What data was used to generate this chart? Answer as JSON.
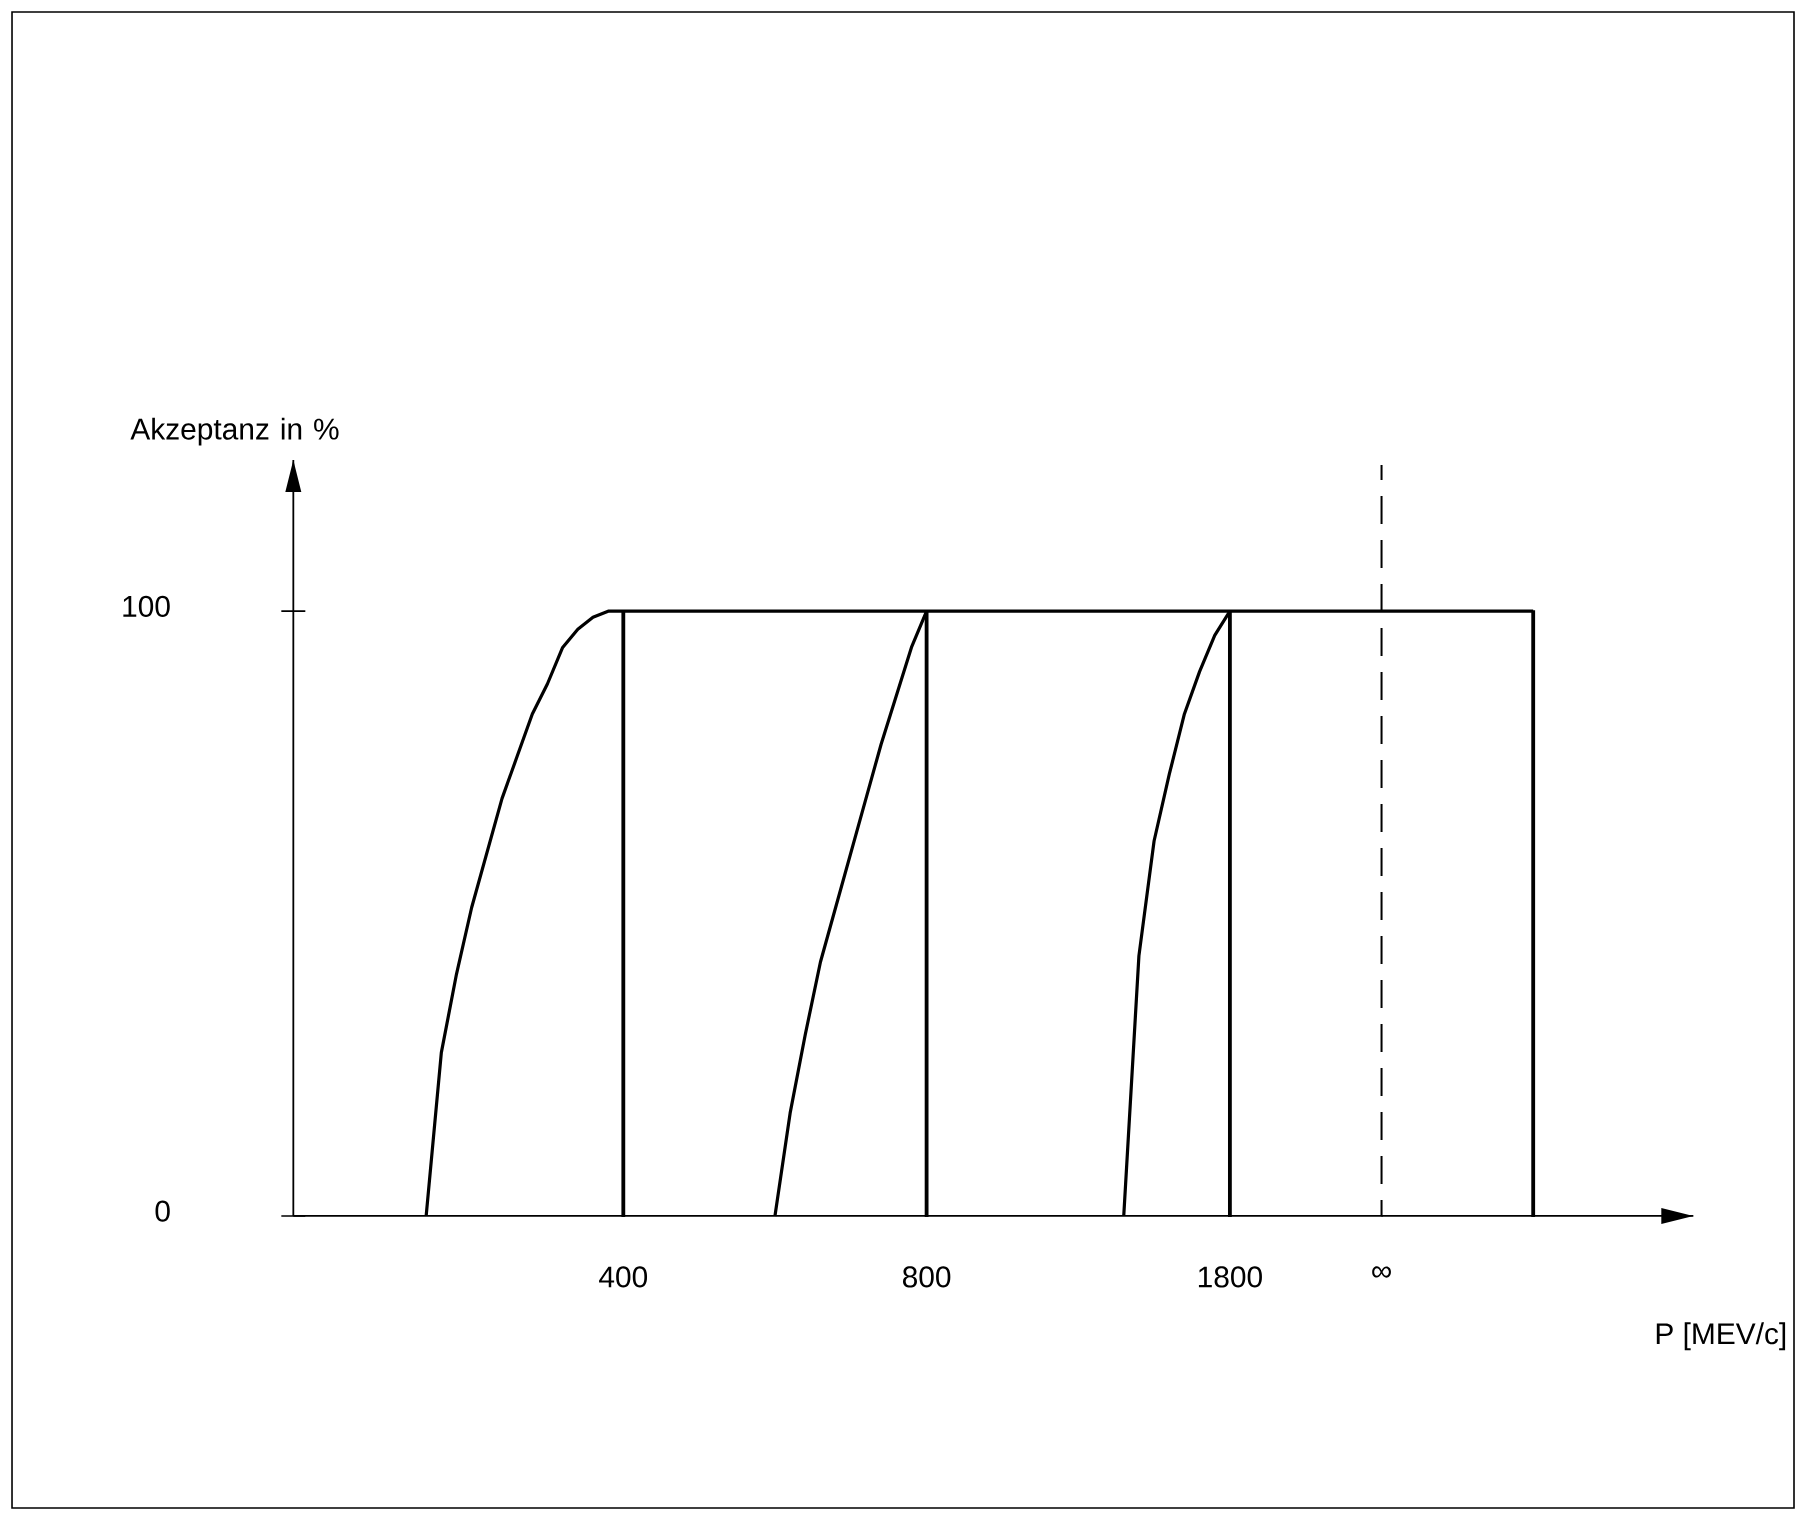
{
  "chart_data": {
    "type": "line",
    "xlabel": "P [MEV/c]",
    "ylabel": "Akzeptanz in %",
    "ylim": [
      0,
      125
    ],
    "yticks": [
      0,
      100
    ],
    "marker": "none",
    "line_style": "solid",
    "categories": [
      null,
      null,
      null,
      null,
      null,
      null,
      null,
      null,
      null,
      null,
      null,
      null,
      null,
      null,
      null,
      null,
      null,
      null,
      null,
      null,
      "400",
      null,
      null,
      null,
      null,
      null,
      null,
      null,
      null,
      null,
      null,
      null,
      null,
      null,
      null,
      null,
      null,
      null,
      null,
      null,
      "800",
      null,
      null,
      null,
      null,
      null,
      null,
      null,
      null,
      null,
      null,
      null,
      null,
      null,
      null,
      null,
      null,
      null,
      null,
      null,
      "1800",
      null,
      null,
      null,
      null,
      null,
      null,
      null,
      null,
      null,
      "∞",
      null,
      null,
      null,
      null,
      null,
      null,
      null,
      null,
      null,
      null
    ],
    "series": [
      {
        "color": "#000000",
        "values": [
          null,
          null,
          null,
          null,
          null,
          null,
          null,
          0,
          27,
          40,
          51,
          60,
          69,
          76,
          83,
          88,
          94,
          97,
          99,
          100,
          100,
          100,
          100,
          100,
          100,
          100,
          100,
          100,
          100,
          100,
          100,
          100,
          100,
          100,
          100,
          100,
          100,
          100,
          100,
          100,
          100,
          100,
          100,
          100,
          100,
          100,
          100,
          100,
          100,
          100,
          100,
          100,
          100,
          100,
          100,
          100,
          100,
          100,
          100,
          100,
          100,
          100,
          100,
          100,
          100,
          100,
          100,
          100,
          100,
          100,
          100,
          100,
          100,
          100,
          100,
          100,
          100,
          100,
          100,
          100,
          100
        ]
      },
      {
        "color": "#000000",
        "values": [
          null,
          null,
          null,
          null,
          null,
          null,
          null,
          null,
          null,
          null,
          null,
          null,
          null,
          null,
          null,
          null,
          null,
          null,
          null,
          null,
          null,
          null,
          null,
          null,
          null,
          null,
          null,
          null,
          null,
          null,
          0,
          17,
          30,
          42,
          51,
          60,
          69,
          78,
          86,
          94,
          100,
          null,
          null,
          null,
          null,
          null,
          null,
          null,
          null,
          null,
          null,
          null,
          null,
          null,
          null,
          null,
          null,
          null,
          null,
          null,
          null,
          null,
          null,
          null,
          null,
          null,
          null,
          null,
          null,
          null,
          null,
          null,
          null,
          null,
          null,
          null,
          null,
          null,
          null,
          null,
          null
        ]
      },
      {
        "color": "#000000",
        "values": [
          null,
          null,
          null,
          null,
          null,
          null,
          null,
          null,
          null,
          null,
          null,
          null,
          null,
          null,
          null,
          null,
          null,
          null,
          null,
          null,
          null,
          null,
          null,
          null,
          null,
          null,
          null,
          null,
          null,
          null,
          null,
          null,
          null,
          null,
          null,
          null,
          null,
          null,
          null,
          null,
          null,
          null,
          null,
          null,
          null,
          null,
          null,
          null,
          null,
          null,
          null,
          null,
          null,
          0,
          43,
          62,
          73,
          83,
          90,
          96,
          100,
          null,
          null,
          null,
          null,
          null,
          null,
          null,
          null,
          null,
          null,
          null,
          null,
          null,
          null,
          null,
          null,
          null,
          null,
          null,
          null
        ]
      },
      {
        "type": "bar",
        "color": "#000000",
        "values": [
          null,
          null,
          null,
          null,
          null,
          null,
          null,
          null,
          null,
          null,
          null,
          null,
          null,
          null,
          null,
          null,
          null,
          null,
          null,
          null,
          100,
          null,
          null,
          null,
          null,
          null,
          null,
          null,
          null,
          null,
          null,
          null,
          null,
          null,
          null,
          null,
          null,
          null,
          null,
          null,
          100,
          null,
          null,
          null,
          null,
          null,
          null,
          null,
          null,
          null,
          null,
          null,
          null,
          null,
          null,
          null,
          null,
          null,
          null,
          null,
          100,
          null,
          null,
          null,
          null,
          null,
          null,
          null,
          null,
          null,
          null,
          null,
          null,
          null,
          null,
          null,
          null,
          null,
          null,
          null,
          100
        ]
      },
      {
        "type": "bar",
        "color": "#000000",
        "line_style": "dashed",
        "values": [
          null,
          null,
          null,
          null,
          null,
          null,
          null,
          null,
          null,
          null,
          null,
          null,
          null,
          null,
          null,
          null,
          null,
          null,
          null,
          null,
          null,
          null,
          null,
          null,
          null,
          null,
          null,
          null,
          null,
          null,
          null,
          null,
          null,
          null,
          null,
          null,
          null,
          null,
          null,
          null,
          null,
          null,
          null,
          null,
          null,
          null,
          null,
          null,
          null,
          null,
          null,
          null,
          null,
          null,
          null,
          null,
          null,
          null,
          null,
          null,
          null,
          null,
          null,
          null,
          null,
          null,
          null,
          null,
          null,
          null,
          124,
          null,
          null,
          null,
          null,
          null,
          null,
          null,
          null,
          null,
          null
        ]
      }
    ]
  }
}
